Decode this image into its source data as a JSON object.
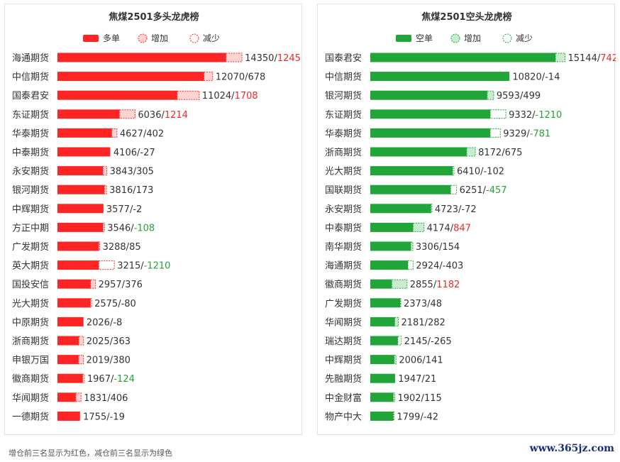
{
  "colors": {
    "long": "#ff2424",
    "long_light": "#ffd3d3",
    "short": "#21a438",
    "short_light": "#c9ecd0",
    "highlight_increase": "#ee2a2a",
    "highlight_decrease": "#21a438"
  },
  "footer_note": "增仓前三名显示为红色，减仓前三名显示为绿色",
  "watermark": "www.365jz.com",
  "chart_data": [
    {
      "type": "bar",
      "orientation": "horizontal",
      "title": "焦煤2501多头龙虎榜",
      "legend": {
        "main": "多单",
        "increase": "增加",
        "decrease": "减少"
      },
      "categories": [
        "海通期货",
        "中信期货",
        "国泰君安",
        "东证期货",
        "华泰期货",
        "中泰期货",
        "永安期货",
        "银河期货",
        "中辉期货",
        "方正中期",
        "广发期货",
        "英大期货",
        "国投安信",
        "光大期货",
        "中原期货",
        "浙商期货",
        "申银万国",
        "徽商期货",
        "华闻期货",
        "一德期货"
      ],
      "values": [
        14350,
        12070,
        11024,
        6036,
        4627,
        4106,
        3843,
        3816,
        3577,
        3546,
        3288,
        3215,
        2957,
        2575,
        2026,
        2025,
        2019,
        1967,
        1831,
        1755
      ],
      "changes": [
        1245,
        678,
        1708,
        1214,
        402,
        -27,
        305,
        173,
        -2,
        -108,
        85,
        -1210,
        376,
        -80,
        -8,
        363,
        380,
        -124,
        406,
        -19
      ],
      "highlight_increase_index": [
        0,
        2,
        3
      ],
      "highlight_decrease_index": [
        11,
        9,
        17
      ],
      "xlim": [
        0,
        16000
      ]
    },
    {
      "type": "bar",
      "orientation": "horizontal",
      "title": "焦煤2501空头龙虎榜",
      "legend": {
        "main": "空单",
        "increase": "增加",
        "decrease": "减少"
      },
      "categories": [
        "国泰君安",
        "中信期货",
        "银河期货",
        "东证期货",
        "华泰期货",
        "浙商期货",
        "光大期货",
        "国联期货",
        "永安期货",
        "中泰期货",
        "南华期货",
        "海通期货",
        "徽商期货",
        "广发期货",
        "华闻期货",
        "瑞达期货",
        "中辉期货",
        "先融期货",
        "中金财富",
        "物产中大"
      ],
      "values": [
        15144,
        10820,
        9593,
        9332,
        9329,
        8172,
        6410,
        6251,
        4723,
        4174,
        3306,
        2924,
        2855,
        2373,
        2181,
        2145,
        2006,
        1947,
        1902,
        1799
      ],
      "changes": [
        742,
        -14,
        499,
        -1210,
        -781,
        675,
        -102,
        -457,
        -72,
        847,
        154,
        -403,
        1182,
        48,
        282,
        -265,
        141,
        21,
        115,
        -42
      ],
      "highlight_increase_index": [
        0,
        9,
        12
      ],
      "highlight_decrease_index": [
        3,
        4,
        7
      ],
      "xlim": [
        0,
        16000
      ]
    }
  ]
}
